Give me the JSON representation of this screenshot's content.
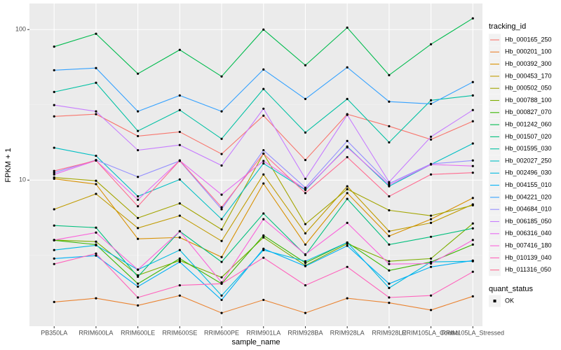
{
  "chart_data": {
    "type": "line",
    "x_label": "sample_name",
    "y_label": "FPKM + 1",
    "log_scale": true,
    "grid": true,
    "ylim": [
      1.07,
      149
    ],
    "yticks": [
      10,
      100
    ],
    "point_color": "#000000",
    "legend_title": "tracking_id",
    "legend2": {
      "title": "quant_status",
      "entries": [
        "OK"
      ]
    },
    "categories": [
      "PB350LA",
      "RRIM600LA",
      "RRIM600LE",
      "RRIM600SE",
      "RRIM600PE",
      "RRIM901LA",
      "RRIM928BA",
      "RRIM928LA",
      "RRIM928LE",
      "RRIM105LA_Control",
      "RRIM105LA_Stressed"
    ],
    "series": [
      {
        "name": "Hb_000165_250",
        "color": "#F8766D",
        "values": [
          26.5,
          27.4,
          19.6,
          20.9,
          14.9,
          26.8,
          13.6,
          27.4,
          22.8,
          18.6,
          24.6
        ]
      },
      {
        "name": "Hb_000201_100",
        "color": "#EA8331",
        "values": [
          1.55,
          1.64,
          1.47,
          1.71,
          1.31,
          1.6,
          1.31,
          1.64,
          1.53,
          1.37,
          1.69
        ]
      },
      {
        "name": "Hb_000392_300",
        "color": "#D89000",
        "values": [
          10.2,
          9.4,
          4.07,
          4.16,
          3.08,
          9.5,
          3.73,
          8.2,
          4.25,
          5.5,
          7.6
        ]
      },
      {
        "name": "Hb_000453_170",
        "color": "#C09B00",
        "values": [
          6.4,
          8.1,
          4.8,
          5.8,
          3.94,
          10.9,
          4.43,
          9.1,
          4.57,
          5.2,
          6.9
        ]
      },
      {
        "name": "Hb_000502_050",
        "color": "#A3A500",
        "values": [
          10.4,
          9.9,
          5.6,
          7.0,
          4.7,
          15.0,
          5.1,
          8.7,
          6.3,
          5.8,
          6.8
        ]
      },
      {
        "name": "Hb_000788_100",
        "color": "#7CAE00",
        "values": [
          4.0,
          3.9,
          2.33,
          2.92,
          2.26,
          4.16,
          2.71,
          3.78,
          2.89,
          3.01,
          5.15
        ]
      },
      {
        "name": "Hb_000827_070",
        "color": "#39B600",
        "values": [
          3.98,
          3.73,
          2.05,
          3.01,
          2.05,
          4.29,
          2.82,
          3.85,
          2.51,
          2.86,
          3.73
        ]
      },
      {
        "name": "Hb_001242_060",
        "color": "#00BB4E",
        "values": [
          77,
          93.8,
          50.9,
          73.3,
          48.8,
          100,
          57.9,
          103,
          49.8,
          79.9,
          118.7
        ]
      },
      {
        "name": "Hb_001507_020",
        "color": "#00BF7D",
        "values": [
          4.99,
          4.83,
          2.28,
          4.57,
          2.86,
          6.0,
          3.18,
          7.5,
          3.73,
          4.2,
          4.78
        ]
      },
      {
        "name": "Hb_001595_030",
        "color": "#00C1A3",
        "values": [
          38.5,
          44.3,
          21.2,
          29.2,
          18.8,
          40.3,
          20.7,
          34.6,
          17.8,
          33.9,
          36.5
        ]
      },
      {
        "name": "Hb_002027_250",
        "color": "#00BFC4",
        "values": [
          16.4,
          14.5,
          7.8,
          10.1,
          5.5,
          12.9,
          8.6,
          16.7,
          9.1,
          12.7,
          17.5
        ]
      },
      {
        "name": "Hb_002496_030",
        "color": "#00BAE0",
        "values": [
          3.43,
          3.69,
          2.54,
          3.43,
          1.71,
          3.43,
          2.89,
          3.85,
          1.92,
          2.86,
          2.89
        ]
      },
      {
        "name": "Hb_004155_010",
        "color": "#00B0F6",
        "values": [
          3.01,
          3.15,
          1.96,
          2.86,
          1.6,
          3.5,
          2.68,
          3.66,
          2.05,
          2.65,
          2.92
        ]
      },
      {
        "name": "Hb_004221_020",
        "color": "#35A2FF",
        "values": [
          53.7,
          55.5,
          28.6,
          36.5,
          28.6,
          54.3,
          34.6,
          56.1,
          33.2,
          32.1,
          44.8
        ]
      },
      {
        "name": "Hb_004684_010",
        "color": "#9590FF",
        "values": [
          11.2,
          13.6,
          10.5,
          13.4,
          6.4,
          15.8,
          8.9,
          18.2,
          9.5,
          12.8,
          13.5
        ]
      },
      {
        "name": "Hb_006185_050",
        "color": "#C77CFF",
        "values": [
          31.5,
          28.6,
          15.8,
          17.1,
          12.5,
          29.8,
          10.2,
          27.1,
          9.7,
          19.4,
          29.2
        ]
      },
      {
        "name": "Hb_006316_040",
        "color": "#E76BF3",
        "values": [
          10.9,
          13.5,
          7.4,
          13.5,
          8.0,
          13.4,
          8.7,
          16.5,
          9.3,
          12.7,
          12.4
        ]
      },
      {
        "name": "Hb_007416_180",
        "color": "#FA62DB",
        "values": [
          4.0,
          4.48,
          2.54,
          4.57,
          2.09,
          5.5,
          3.21,
          5.2,
          2.77,
          2.79,
          4.0
        ]
      },
      {
        "name": "Hb_010139_040",
        "color": "#FF62BC",
        "values": [
          2.77,
          3.25,
          1.66,
          2.0,
          2.05,
          3.05,
          2.0,
          2.65,
          1.66,
          1.71,
          2.46
        ]
      },
      {
        "name": "Hb_011316_050",
        "color": "#FF6C91",
        "values": [
          11.5,
          13.5,
          6.7,
          13.5,
          6.6,
          15.0,
          8.2,
          14.2,
          7.8,
          10.9,
          11.2
        ]
      }
    ]
  }
}
